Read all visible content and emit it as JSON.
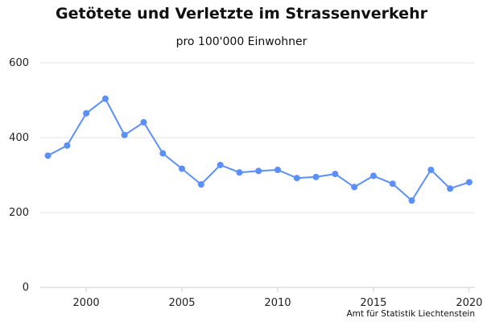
{
  "chart_data": {
    "type": "line",
    "title": "Getötete und Verletzte im Strassenverkehr",
    "subtitle": "pro 100'000 Einwohner",
    "source": "Amt für Statistik Liechtenstein",
    "x": [
      1998,
      1999,
      2000,
      2001,
      2002,
      2003,
      2004,
      2005,
      2006,
      2007,
      2008,
      2009,
      2010,
      2011,
      2012,
      2013,
      2014,
      2015,
      2016,
      2017,
      2018,
      2019,
      2020
    ],
    "series": [
      {
        "values": [
          352,
          379,
          465,
          504,
          407,
          441,
          358,
          317,
          275,
          327,
          307,
          311,
          314,
          292,
          295,
          303,
          268,
          298,
          277,
          232,
          314,
          264,
          281
        ],
        "color": "#5b8ff9"
      }
    ],
    "xticks": [
      2000,
      2005,
      2010,
      2015,
      2020
    ],
    "yticks": [
      0,
      200,
      400,
      600
    ],
    "xlim": [
      1997.6,
      2020.3
    ],
    "ylim": [
      0,
      600
    ],
    "xlabel": "",
    "ylabel": "",
    "grid": "horizontal",
    "legend": "none"
  }
}
